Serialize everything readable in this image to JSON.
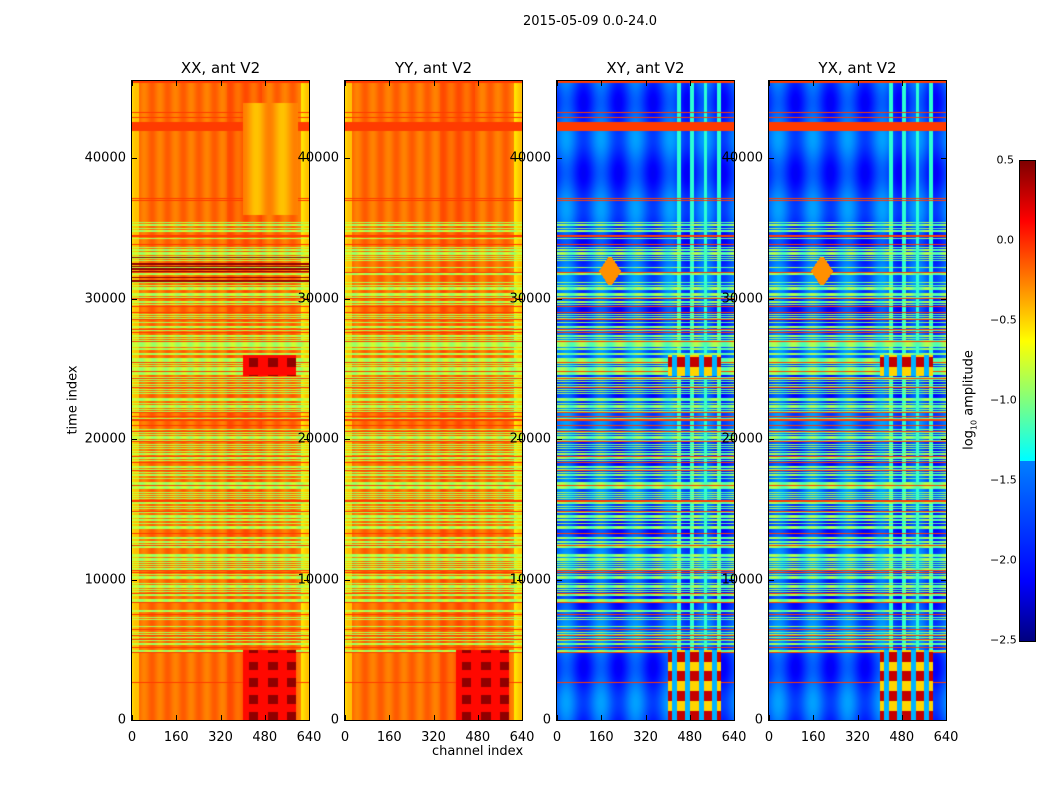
{
  "chart_data": {
    "type": "heatmap",
    "title": "2015-05-09 0.0-24.0",
    "xlabel": "channel index",
    "ylabel": "time index",
    "xlim": [
      0,
      640
    ],
    "ylim": [
      0,
      45500
    ],
    "xticks": [
      "0",
      "160",
      "320",
      "480",
      "640"
    ],
    "yticks": [
      "0",
      "10000",
      "20000",
      "30000",
      "40000"
    ],
    "yticks_values": [
      0,
      10000,
      20000,
      30000,
      40000
    ],
    "xticks_values": [
      0,
      160,
      320,
      480,
      640
    ],
    "panels": [
      {
        "title": "XX, ant V2",
        "typical_log_amplitude": -0.2,
        "flagged_band_level": -0.85
      },
      {
        "title": "YY, ant V2",
        "typical_log_amplitude": -0.2,
        "flagged_band_level": -0.85
      },
      {
        "title": "XY, ant V2",
        "typical_log_amplitude": -1.9,
        "flagged_band_level": -1.0
      },
      {
        "title": "YX, ant V2",
        "typical_log_amplitude": -1.9,
        "flagged_band_level": -1.0
      }
    ],
    "colorbar": {
      "label_prefix": "log",
      "label_sub": "10",
      "label_suffix": " amplitude",
      "range": [
        -2.5,
        0.5
      ],
      "ticks": [
        "0.5",
        "0.0",
        "−0.5",
        "−1.0",
        "−1.5",
        "−2.0",
        "−2.5"
      ],
      "tick_values": [
        0.5,
        0.0,
        -0.5,
        -1.0,
        -1.5,
        -2.0,
        -2.5
      ],
      "colormap": "jet"
    }
  }
}
